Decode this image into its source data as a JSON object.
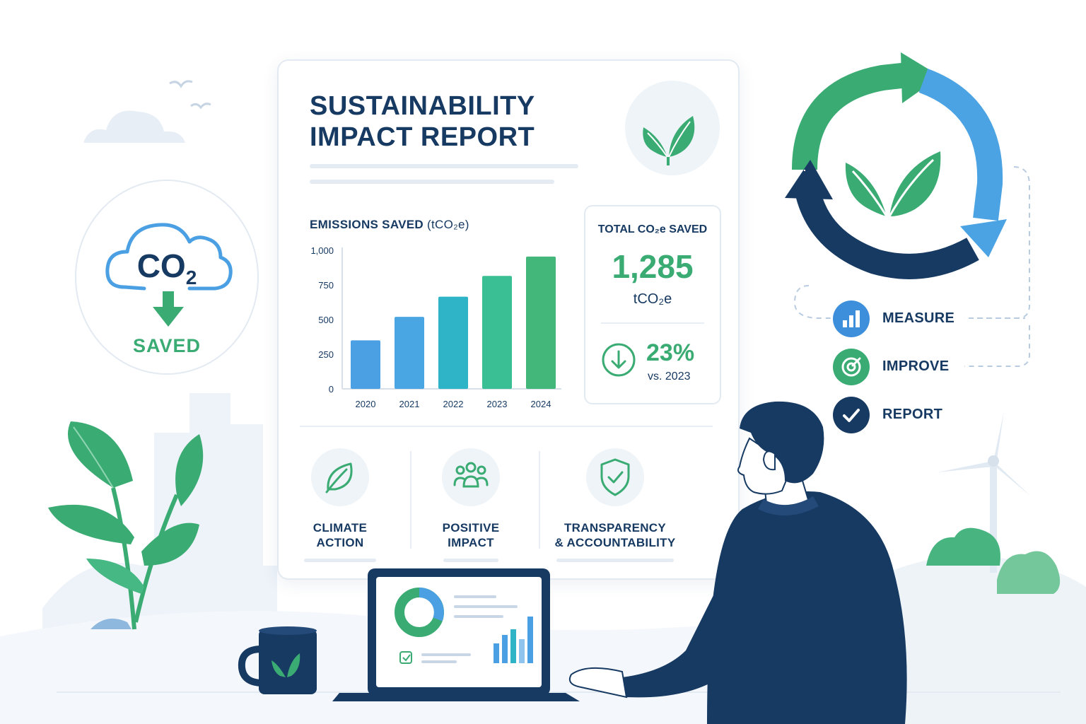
{
  "report": {
    "title_line1": "SUSTAINABILITY",
    "title_line2": "IMPACT REPORT"
  },
  "chart": {
    "title": "EMISSIONS SAVED",
    "unit": "(tCO₂e)"
  },
  "chart_data": {
    "type": "bar",
    "title": "EMISSIONS SAVED (tCO₂e)",
    "categories": [
      "2020",
      "2021",
      "2022",
      "2023",
      "2024"
    ],
    "values": [
      350,
      520,
      665,
      815,
      955
    ],
    "ylim": [
      0,
      1000
    ],
    "yticks": [
      "0",
      "250",
      "500",
      "750",
      "1,000"
    ],
    "colors": [
      "#4b9fe3",
      "#49a6e2",
      "#2fb3c6",
      "#3abf94",
      "#43b77a"
    ],
    "grid": false,
    "legend": "none"
  },
  "total": {
    "label": "TOTAL CO₂e SAVED",
    "value": "1,285",
    "unit": "tCO₂e",
    "change": "23%",
    "change_sub": "vs. 2023"
  },
  "features": [
    {
      "line1": "CLIMATE",
      "line2": "ACTION",
      "icon": "leaf-icon"
    },
    {
      "line1": "POSITIVE",
      "line2": "IMPACT",
      "icon": "people-icon"
    },
    {
      "line1": "TRANSPARENCY",
      "line2": "& ACCOUNTABILITY",
      "icon": "shield-check-icon"
    }
  ],
  "co2_badge": {
    "text": "CO",
    "subscript": "2",
    "label": "SAVED"
  },
  "steps": [
    {
      "label": "MEASURE",
      "icon": "bar-chart-icon",
      "color": "#3d8fdc"
    },
    {
      "label": "IMPROVE",
      "icon": "target-icon",
      "color": "#3aab73"
    },
    {
      "label": "REPORT",
      "icon": "check-icon",
      "color": "#173a63"
    }
  ],
  "colors": {
    "navy": "#173a63",
    "green": "#3aab73",
    "blue": "#4b9fe3"
  }
}
